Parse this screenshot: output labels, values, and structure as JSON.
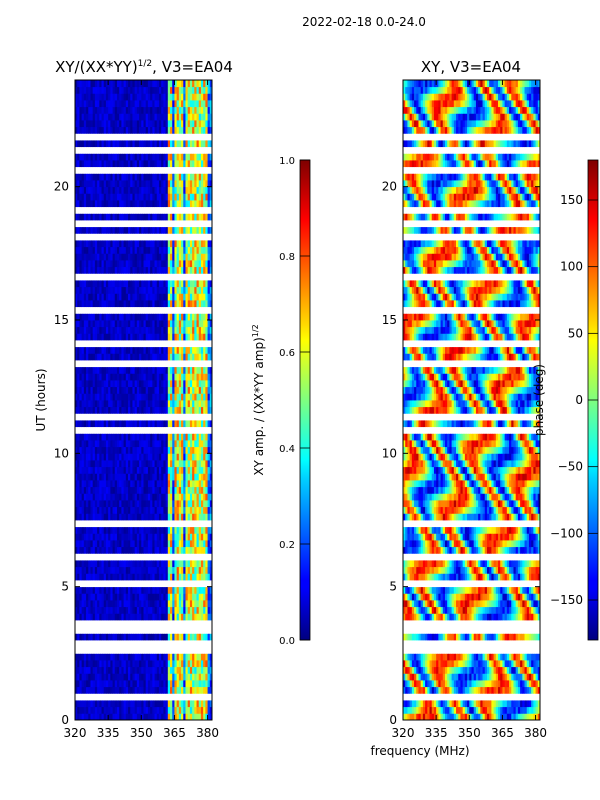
{
  "figure": {
    "suptitle": "2022-02-18 0.0-24.0",
    "shared_xlabel": "frequency (MHz)"
  },
  "colors": {
    "colormap": "jet",
    "gap_color": "#ffffff",
    "axis_color": "#000000"
  },
  "chart_data": [
    {
      "type": "heatmap",
      "title_main": "XY/(XX*YY)",
      "title_exponent": "1/2",
      "title_suffix": ", V3=EA04",
      "xlabel": "",
      "ylabel": "UT (hours)",
      "xlim": [
        320,
        382
      ],
      "ylim": [
        0,
        24
      ],
      "xticks": [
        320,
        335,
        350,
        365,
        380
      ],
      "yticks": [
        0,
        5,
        10,
        15,
        20
      ],
      "colorbar": {
        "label_main": "XY amp. / (XX*YY amp)",
        "label_exponent": "1/2",
        "range": [
          0.0,
          1.0
        ],
        "ticks": [
          "0.0",
          "0.2",
          "0.4",
          "0.6",
          "0.8",
          "1.0"
        ]
      },
      "notes": "Mostly low amplitude (~0.0-0.1) below 362 MHz; bright vertical channels between 362 and 380 MHz (~0.3-0.9)",
      "bright_channels_mhz": [
        363,
        366,
        368,
        371,
        373,
        375,
        377,
        379
      ],
      "time_gaps_ut_hours": [
        0.85,
        2.6,
        2.95,
        3.4,
        3.65,
        5.1,
        6.2,
        7.4,
        9.5,
        10.8,
        11.4,
        13.4,
        14.1,
        15.4,
        16.6,
        18.2,
        18.7,
        19.2,
        20.6,
        21.3,
        21.8,
        22.5
      ]
    },
    {
      "type": "heatmap",
      "title_main": "XY, V3=EA04",
      "title_exponent": "",
      "title_suffix": "",
      "xlabel": "",
      "ylabel": "",
      "xlim": [
        320,
        382
      ],
      "ylim": [
        0,
        24
      ],
      "xticks": [
        320,
        335,
        350,
        365,
        380
      ],
      "yticks": [
        0,
        5,
        10,
        15,
        20
      ],
      "colorbar": {
        "label_main": "phase (deg)",
        "label_exponent": "",
        "range": [
          -180,
          180
        ],
        "ticks": [
          "−150",
          "−100",
          "−50",
          "0",
          "50",
          "100",
          "150"
        ]
      },
      "notes": "Phase varies across the full -180 to 180 deg range with noisy, banded structure",
      "time_gaps_ut_hours": [
        0.85,
        2.6,
        2.95,
        3.4,
        3.65,
        5.1,
        6.2,
        7.4,
        9.5,
        10.8,
        11.4,
        13.4,
        14.1,
        15.4,
        16.6,
        18.2,
        18.7,
        19.2,
        20.6,
        21.3,
        21.8,
        22.5
      ]
    }
  ]
}
